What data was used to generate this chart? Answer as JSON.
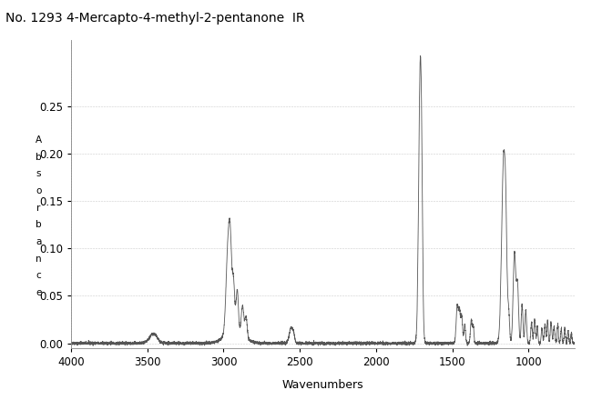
{
  "title": "No. 1293 4-Mercapto-4-methyl-2-pentanone  IR",
  "xlabel": "Wavenumbers",
  "ylabel_letters": [
    "A",
    "b",
    "s",
    "o",
    "r",
    "b",
    "a",
    "n",
    "c",
    "e"
  ],
  "xlim": [
    4000,
    700
  ],
  "ylim": [
    -0.005,
    0.32
  ],
  "yticks": [
    0.0,
    0.05,
    0.1,
    0.15,
    0.2,
    0.25
  ],
  "xticks": [
    4000,
    3500,
    3000,
    2500,
    2000,
    1500,
    1000
  ],
  "background_color": "#ffffff",
  "line_color": "#444444",
  "title_fontsize": 10,
  "axis_fontsize": 9
}
